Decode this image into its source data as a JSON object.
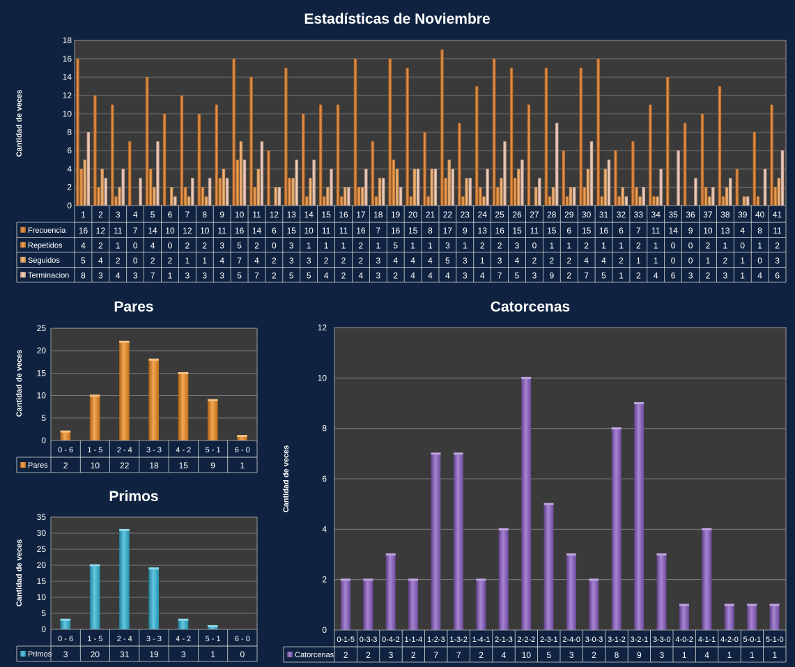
{
  "chart_data": [
    {
      "type": "bar",
      "title": "Estadísticas de Noviembre",
      "ylabel": "Cantidad de veces",
      "ylim": [
        0,
        18
      ],
      "yticks": [
        "0",
        "2",
        "4",
        "6",
        "8",
        "10",
        "12",
        "14",
        "16",
        "18"
      ],
      "categories": [
        "1",
        "2",
        "3",
        "4",
        "5",
        "6",
        "7",
        "8",
        "9",
        "10",
        "11",
        "12",
        "13",
        "14",
        "15",
        "16",
        "17",
        "18",
        "19",
        "20",
        "21",
        "22",
        "23",
        "24",
        "25",
        "26",
        "27",
        "28",
        "29",
        "30",
        "31",
        "32",
        "33",
        "34",
        "35",
        "36",
        "37",
        "38",
        "39",
        "40",
        "41"
      ],
      "series": [
        {
          "name": "Frecuencia",
          "color": "#e0761c",
          "values": [
            16,
            12,
            11,
            7,
            14,
            10,
            12,
            10,
            11,
            16,
            14,
            6,
            15,
            10,
            11,
            11,
            16,
            7,
            16,
            15,
            8,
            17,
            9,
            13,
            16,
            15,
            11,
            15,
            6,
            15,
            16,
            6,
            7,
            11,
            14,
            9,
            10,
            13,
            4,
            8,
            11
          ]
        },
        {
          "name": "Repetidos",
          "color": "#f08a2a",
          "values": [
            4,
            2,
            1,
            0,
            4,
            0,
            2,
            2,
            3,
            5,
            2,
            0,
            3,
            1,
            1,
            1,
            2,
            1,
            5,
            1,
            1,
            3,
            1,
            2,
            2,
            3,
            0,
            1,
            1,
            2,
            1,
            1,
            2,
            1,
            0,
            0,
            2,
            1,
            0,
            1,
            2
          ]
        },
        {
          "name": "Seguidos",
          "color": "#f7a85a",
          "values": [
            5,
            4,
            2,
            0,
            2,
            2,
            1,
            1,
            4,
            7,
            4,
            2,
            3,
            3,
            2,
            2,
            2,
            3,
            4,
            4,
            4,
            5,
            3,
            1,
            3,
            4,
            2,
            2,
            2,
            4,
            4,
            2,
            1,
            1,
            0,
            0,
            1,
            2,
            1,
            0,
            3
          ]
        },
        {
          "name": "Terminacion",
          "color": "#f5c7b0",
          "values": [
            8,
            3,
            4,
            3,
            7,
            1,
            3,
            3,
            3,
            5,
            7,
            2,
            5,
            5,
            4,
            2,
            4,
            3,
            2,
            4,
            4,
            4,
            3,
            4,
            7,
            5,
            3,
            9,
            2,
            7,
            5,
            1,
            2,
            4,
            6,
            3,
            2,
            3,
            1,
            4,
            6
          ]
        }
      ]
    },
    {
      "type": "bar",
      "title": "Pares",
      "ylabel": "Cantidad de veces",
      "ylim": [
        0,
        25
      ],
      "yticks": [
        "0",
        "5",
        "10",
        "15",
        "20",
        "25"
      ],
      "categories": [
        "0 - 6",
        "1 - 5",
        "2 - 4",
        "3 - 3",
        "4 - 2",
        "5 - 1",
        "6 - 0"
      ],
      "series": [
        {
          "name": "Pares",
          "color": "#f08a1c",
          "values": [
            2,
            10,
            22,
            18,
            15,
            9,
            1
          ]
        }
      ]
    },
    {
      "type": "bar",
      "title": "Primos",
      "ylabel": "Cantidad de veces",
      "ylim": [
        0,
        35
      ],
      "yticks": [
        "0",
        "5",
        "10",
        "15",
        "20",
        "25",
        "30",
        "35"
      ],
      "categories": [
        "0 - 6",
        "1 - 5",
        "2 - 4",
        "3 - 3",
        "4 - 2",
        "5 - 1",
        "6 - 0"
      ],
      "series": [
        {
          "name": "Primos",
          "color": "#2fb6d8",
          "values": [
            3,
            20,
            31,
            19,
            3,
            1,
            0
          ]
        }
      ]
    },
    {
      "type": "bar",
      "title": "Catorcenas",
      "ylabel": "Cantidad de veces",
      "ylim": [
        0,
        12
      ],
      "yticks": [
        "0",
        "2",
        "4",
        "6",
        "8",
        "10",
        "12"
      ],
      "categories": [
        "0-1-5",
        "0-3-3",
        "0-4-2",
        "1-1-4",
        "1-2-3",
        "1-3-2",
        "1-4-1",
        "2-1-3",
        "2-2-2",
        "2-3-1",
        "2-4-0",
        "3-0-3",
        "3-1-2",
        "3-2-1",
        "3-3-0",
        "4-0-2",
        "4-1-1",
        "4-2-0",
        "5-0-1",
        "5-1-0"
      ],
      "series": [
        {
          "name": "Catorcenas",
          "color": "#8a5cc4",
          "values": [
            2,
            2,
            3,
            2,
            7,
            7,
            2,
            4,
            10,
            5,
            3,
            2,
            8,
            9,
            3,
            1,
            4,
            1,
            1,
            1
          ]
        }
      ]
    }
  ]
}
